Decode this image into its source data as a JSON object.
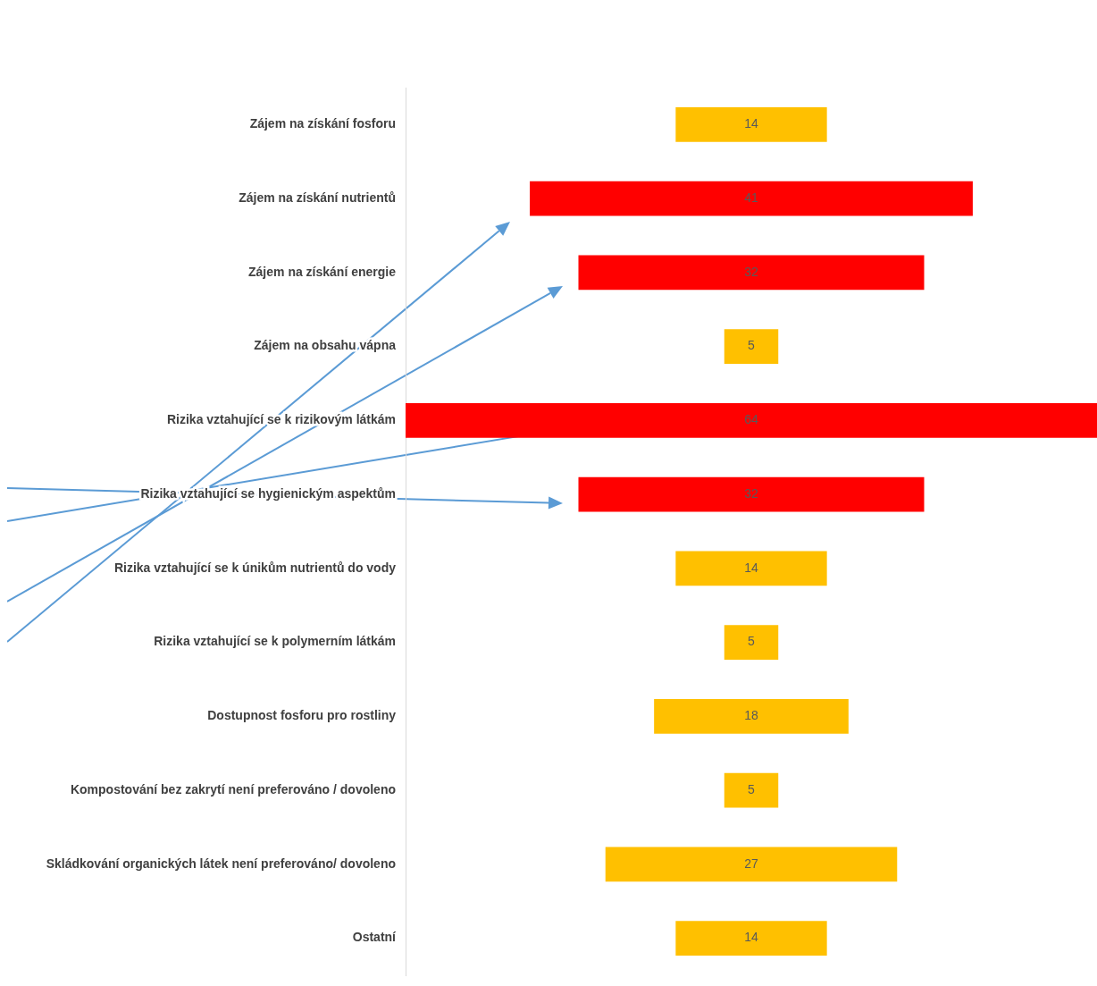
{
  "chart_data": {
    "type": "other",
    "categories": [
      "Zájem na získání fosforu",
      "Zájem na získání nutrientů",
      "Zájem na získání energie",
      "Zájem na obsahu vápna",
      "Rizika vztahující se k rizikovým látkám",
      "Rizika vztahující se hygienickým aspektům",
      "Rizika vztahující se k únikům nutrientů do vody",
      "Rizika vztahující se k polymerním látkám",
      "Dostupnost fosforu pro rostliny",
      "Kompostování bez zakrytí není preferováno / dovoleno",
      "Skládkování organických látek není preferováno/ dovoleno",
      "Ostatní"
    ],
    "values": [
      14,
      41,
      32,
      5,
      64,
      32,
      14,
      5,
      18,
      5,
      27,
      14
    ],
    "colors": [
      "#ffc000",
      "#ff0000",
      "#ff0000",
      "#ffc000",
      "#ff0000",
      "#ff0000",
      "#ffc000",
      "#ffc000",
      "#ffc000",
      "#ffc000",
      "#ffc000",
      "#ffc000"
    ],
    "data_labels": true
  }
}
